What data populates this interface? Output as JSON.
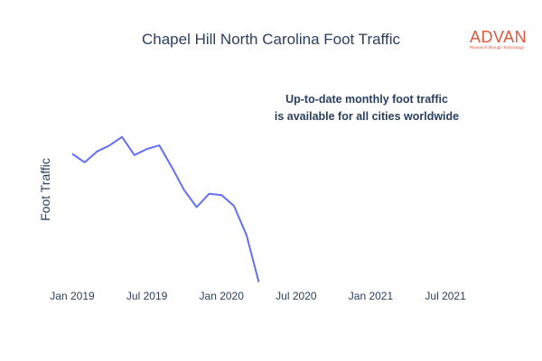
{
  "chart_data": {
    "type": "line",
    "title": "Chapel Hill North Carolina Foot Traffic",
    "xlabel": "",
    "ylabel": "Foot Traffic",
    "x": [
      "2019-01",
      "2019-02",
      "2019-03",
      "2019-04",
      "2019-05",
      "2019-06",
      "2019-07",
      "2019-08",
      "2019-09",
      "2019-10",
      "2019-11",
      "2019-12",
      "2020-01",
      "2020-02",
      "2020-03",
      "2020-04"
    ],
    "series": [
      {
        "values": [
          1.0,
          0.93,
          1.02,
          1.07,
          1.14,
          0.99,
          1.04,
          1.07,
          0.89,
          0.7,
          0.56,
          0.67,
          0.66,
          0.57,
          0.33,
          -0.06
        ]
      }
    ],
    "ylim": [
      -0.1,
      1.6
    ],
    "x_ticks": [
      "Jan 2019",
      "Jul 2019",
      "Jan 2020",
      "Jul 2020",
      "Jan 2021",
      "Jul 2021"
    ],
    "y_ticks_shown": false,
    "grid": false,
    "line_color": "#636efa"
  },
  "annotation": {
    "line1": "Up-to-date monthly foot traffic",
    "line2": "is available for all cities worldwide"
  },
  "logo": {
    "word": "ADVAN",
    "tagline": "Research through Technology",
    "color": "#e2553b"
  }
}
